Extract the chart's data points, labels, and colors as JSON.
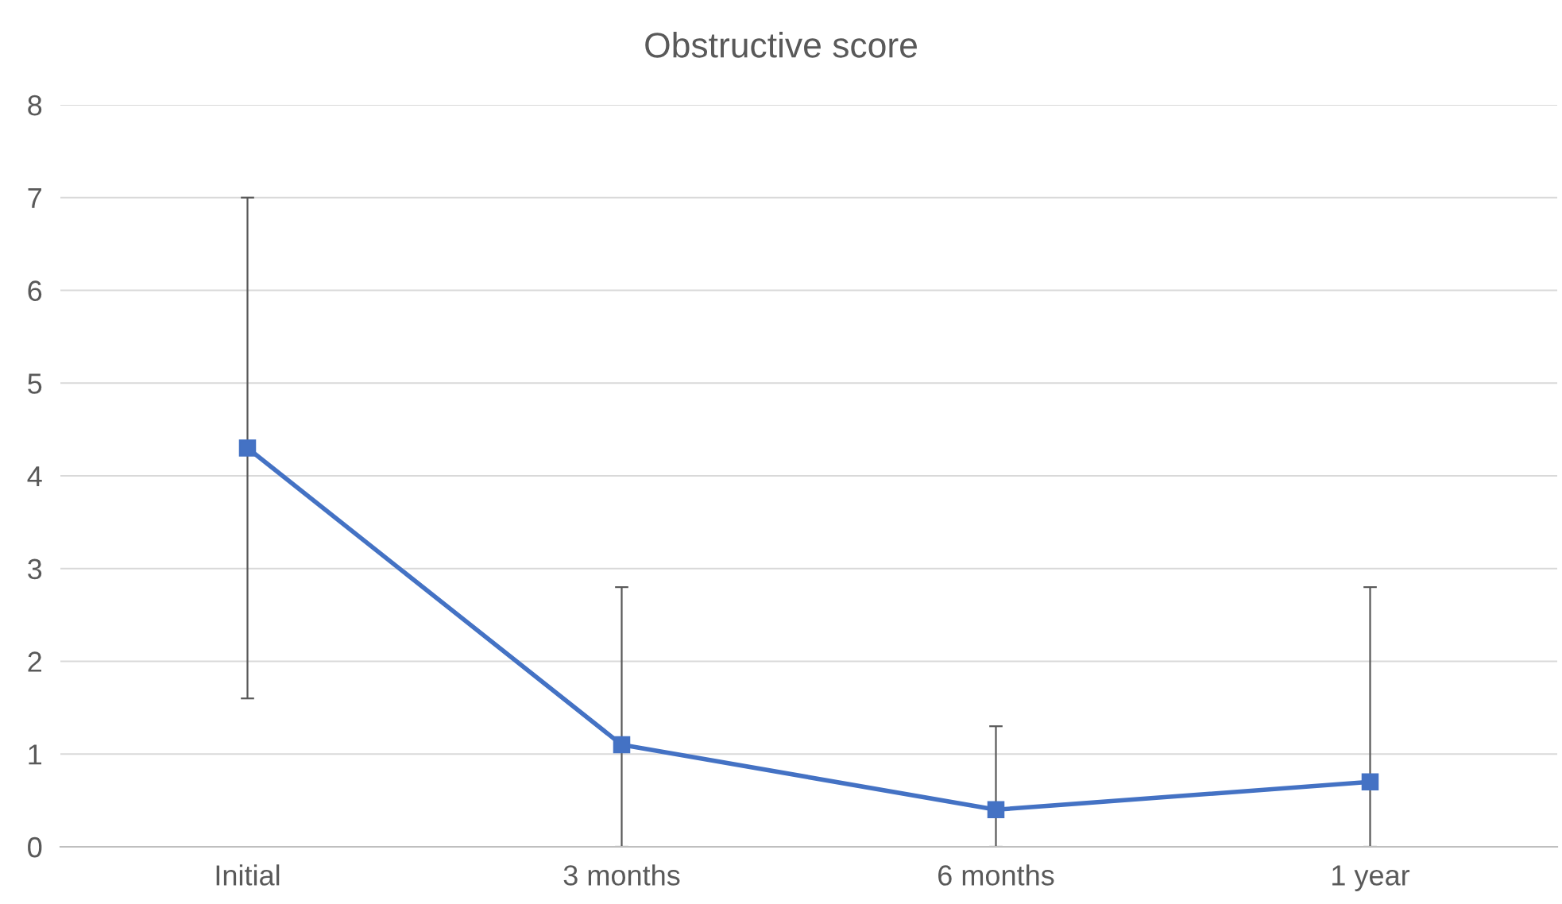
{
  "chart_data": {
    "type": "line",
    "title": "Obstructive score",
    "categories": [
      "Initial",
      "3 months",
      "6 months",
      "1 year"
    ],
    "series": [
      {
        "color": "#4472c4",
        "values": [
          4.3,
          1.1,
          0.4,
          0.7
        ],
        "errors": [
          [
            1.6,
            7.0
          ],
          [
            0,
            2.8
          ],
          [
            0,
            1.3
          ],
          [
            0,
            2.8
          ]
        ]
      }
    ],
    "ylim": [
      0,
      8
    ],
    "yticks": [
      0,
      1,
      2,
      3,
      4,
      5,
      6,
      7,
      8
    ],
    "grid": "y",
    "marker": "square",
    "line_style": "solid",
    "legend": false
  }
}
